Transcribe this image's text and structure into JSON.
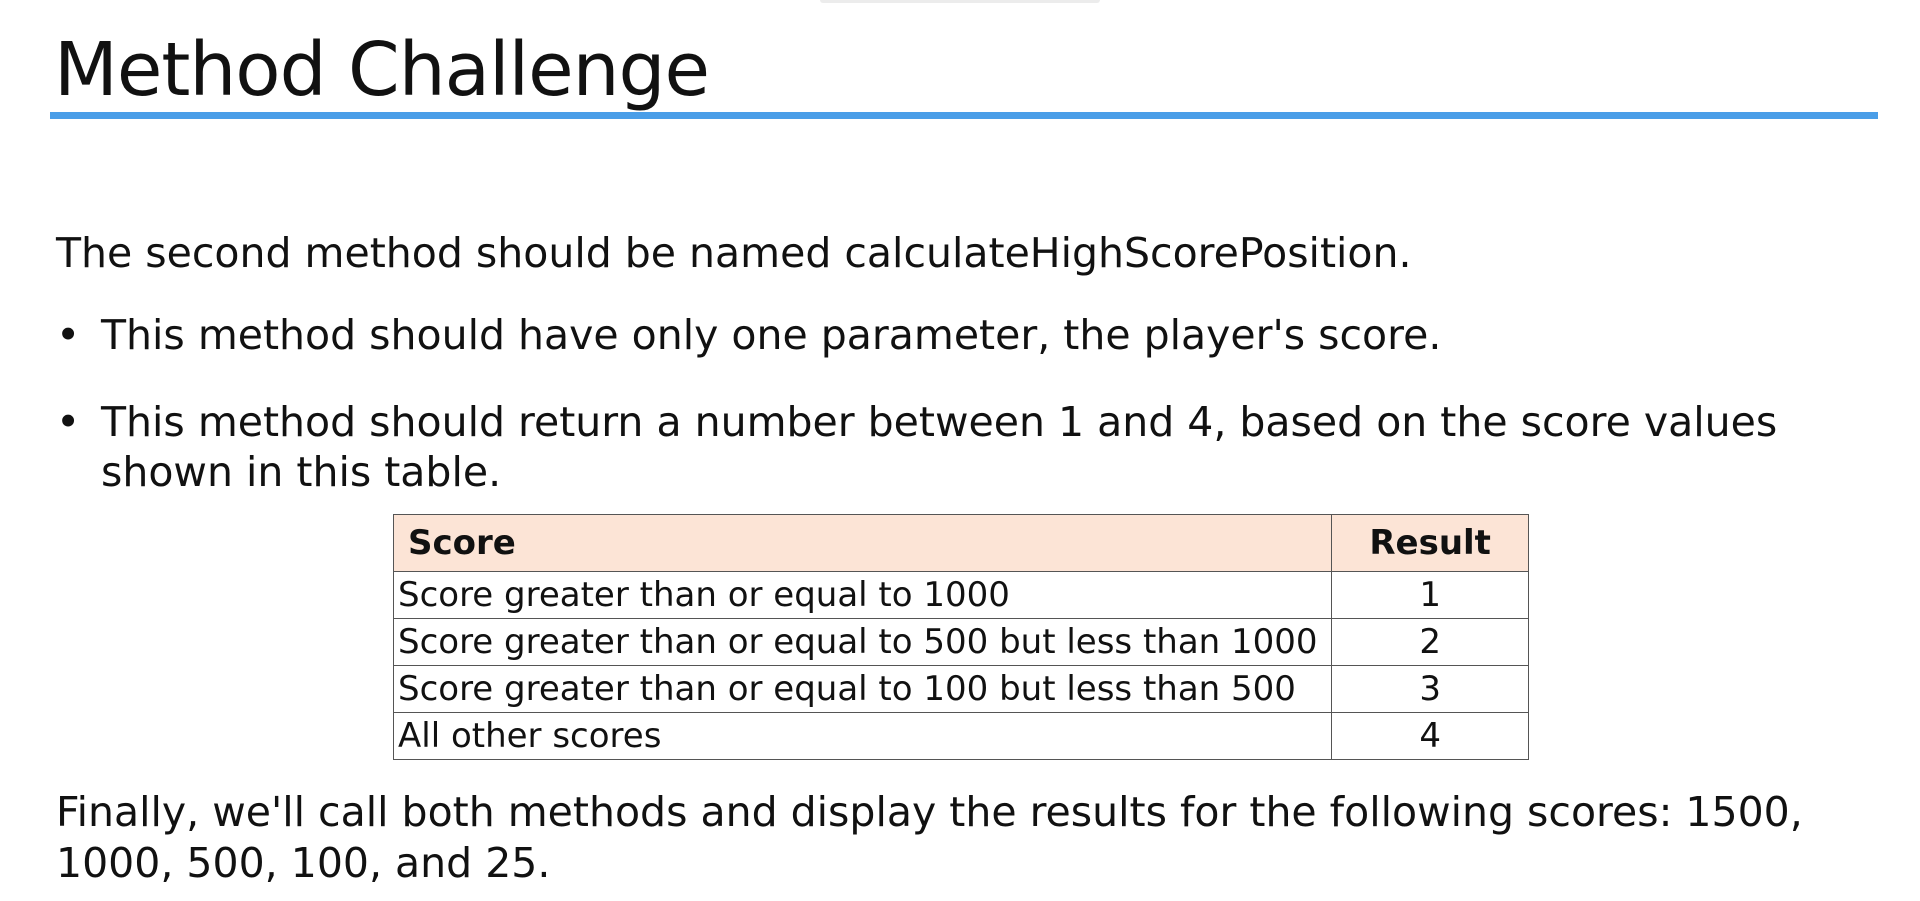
{
  "slide": {
    "title": "Method Challenge",
    "intro": "The second method should be named calculateHighScorePosition.",
    "bullets": [
      {
        "marker": "•",
        "text": "This method should have only one parameter, the player's score."
      },
      {
        "marker": "•",
        "text": "This method should return a number between 1 and 4, based on the score values shown in this table."
      }
    ],
    "table": {
      "headers": {
        "score": "Score",
        "result": "Result"
      },
      "rows": [
        {
          "score": "Score greater than or equal to 1000",
          "result": "1"
        },
        {
          "score": "Score greater than or equal to 500 but less than 1000",
          "result": "2"
        },
        {
          "score": "Score greater than or equal to 100 but less than 500",
          "result": "3"
        },
        {
          "score": "All other scores",
          "result": "4"
        }
      ]
    },
    "outro": "Finally, we'll call both methods and display the results for the following scores: 1500, 1000, 500, 100, and 25."
  },
  "colors": {
    "accent_rule": "#4a9ee8",
    "table_header_bg": "#fce4d6",
    "text": "#111111"
  }
}
